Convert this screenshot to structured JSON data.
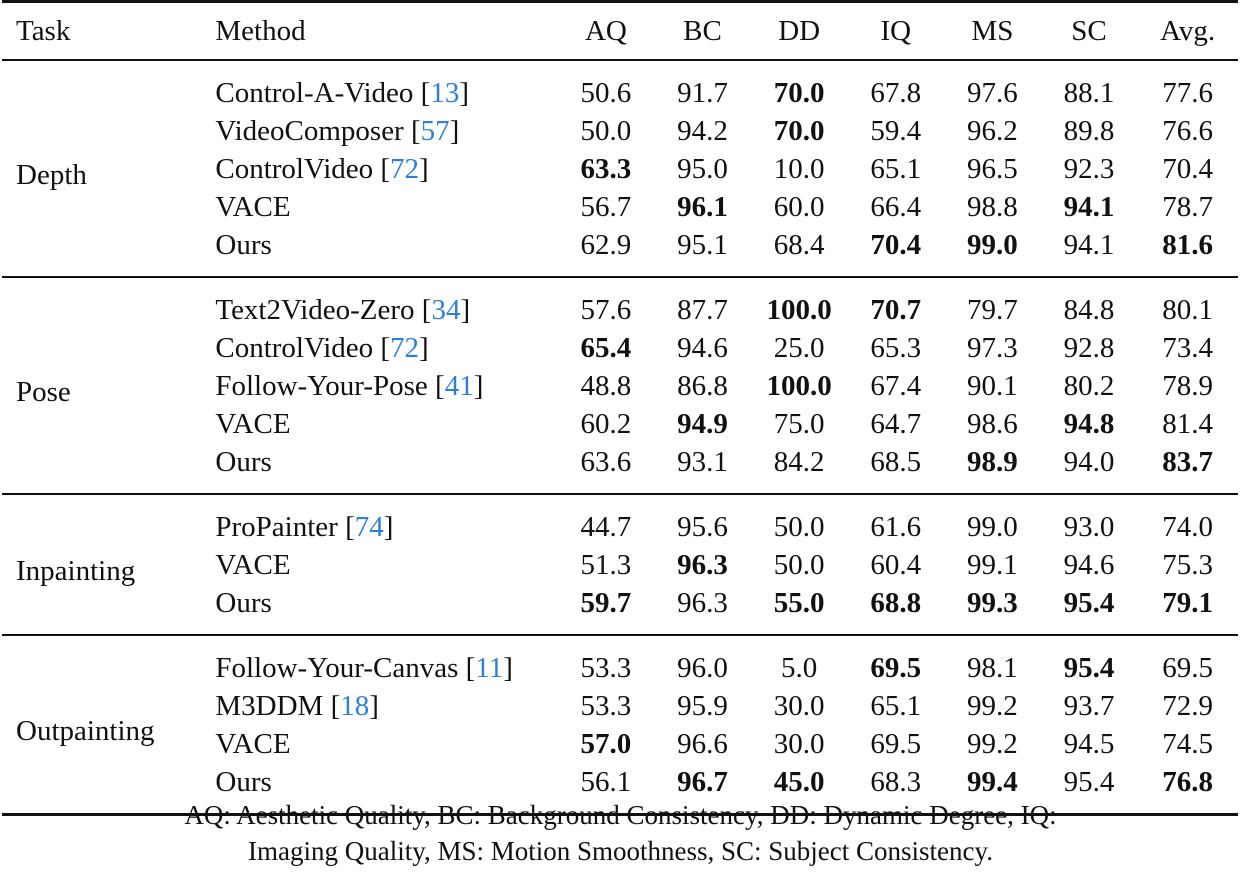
{
  "table": {
    "headers": {
      "task": "Task",
      "method": "Method",
      "metrics": [
        "AQ",
        "BC",
        "DD",
        "IQ",
        "MS",
        "SC",
        "Avg."
      ]
    },
    "groups": [
      {
        "task": "Depth",
        "rows": [
          {
            "method": "Control-A-Video",
            "cite": "13",
            "values": [
              "50.6",
              "91.7",
              "70.0",
              "67.8",
              "97.6",
              "88.1",
              "77.6"
            ],
            "bold": [
              false,
              false,
              true,
              false,
              false,
              false,
              false
            ]
          },
          {
            "method": "VideoComposer",
            "cite": "57",
            "values": [
              "50.0",
              "94.2",
              "70.0",
              "59.4",
              "96.2",
              "89.8",
              "76.6"
            ],
            "bold": [
              false,
              false,
              true,
              false,
              false,
              false,
              false
            ]
          },
          {
            "method": "ControlVideo",
            "cite": "72",
            "values": [
              "63.3",
              "95.0",
              "10.0",
              "65.1",
              "96.5",
              "92.3",
              "70.4"
            ],
            "bold": [
              true,
              false,
              false,
              false,
              false,
              false,
              false
            ]
          },
          {
            "method": "VACE",
            "cite": null,
            "values": [
              "56.7",
              "96.1",
              "60.0",
              "66.4",
              "98.8",
              "94.1",
              "78.7"
            ],
            "bold": [
              false,
              true,
              false,
              false,
              false,
              true,
              false
            ]
          },
          {
            "method": "Ours",
            "cite": null,
            "values": [
              "62.9",
              "95.1",
              "68.4",
              "70.4",
              "99.0",
              "94.1",
              "81.6"
            ],
            "bold": [
              false,
              false,
              false,
              true,
              true,
              false,
              true
            ]
          }
        ]
      },
      {
        "task": "Pose",
        "rows": [
          {
            "method": "Text2Video-Zero",
            "cite": "34",
            "values": [
              "57.6",
              "87.7",
              "100.0",
              "70.7",
              "79.7",
              "84.8",
              "80.1"
            ],
            "bold": [
              false,
              false,
              true,
              true,
              false,
              false,
              false
            ]
          },
          {
            "method": "ControlVideo",
            "cite": "72",
            "values": [
              "65.4",
              "94.6",
              "25.0",
              "65.3",
              "97.3",
              "92.8",
              "73.4"
            ],
            "bold": [
              true,
              false,
              false,
              false,
              false,
              false,
              false
            ]
          },
          {
            "method": "Follow-Your-Pose",
            "cite": "41",
            "values": [
              "48.8",
              "86.8",
              "100.0",
              "67.4",
              "90.1",
              "80.2",
              "78.9"
            ],
            "bold": [
              false,
              false,
              true,
              false,
              false,
              false,
              false
            ]
          },
          {
            "method": "VACE",
            "cite": null,
            "values": [
              "60.2",
              "94.9",
              "75.0",
              "64.7",
              "98.6",
              "94.8",
              "81.4"
            ],
            "bold": [
              false,
              true,
              false,
              false,
              false,
              true,
              false
            ]
          },
          {
            "method": "Ours",
            "cite": null,
            "values": [
              "63.6",
              "93.1",
              "84.2",
              "68.5",
              "98.9",
              "94.0",
              "83.7"
            ],
            "bold": [
              false,
              false,
              false,
              false,
              true,
              false,
              true
            ]
          }
        ]
      },
      {
        "task": "Inpainting",
        "rows": [
          {
            "method": "ProPainter",
            "cite": "74",
            "values": [
              "44.7",
              "95.6",
              "50.0",
              "61.6",
              "99.0",
              "93.0",
              "74.0"
            ],
            "bold": [
              false,
              false,
              false,
              false,
              false,
              false,
              false
            ]
          },
          {
            "method": "VACE",
            "cite": null,
            "values": [
              "51.3",
              "96.3",
              "50.0",
              "60.4",
              "99.1",
              "94.6",
              "75.3"
            ],
            "bold": [
              false,
              true,
              false,
              false,
              false,
              false,
              false
            ]
          },
          {
            "method": "Ours",
            "cite": null,
            "values": [
              "59.7",
              "96.3",
              "55.0",
              "68.8",
              "99.3",
              "95.4",
              "79.1"
            ],
            "bold": [
              true,
              false,
              true,
              true,
              true,
              true,
              true
            ]
          }
        ]
      },
      {
        "task": "Outpainting",
        "rows": [
          {
            "method": "Follow-Your-Canvas",
            "cite": "11",
            "values": [
              "53.3",
              "96.0",
              "5.0",
              "69.5",
              "98.1",
              "95.4",
              "69.5"
            ],
            "bold": [
              false,
              false,
              false,
              true,
              false,
              true,
              false
            ]
          },
          {
            "method": "M3DDM",
            "cite": "18",
            "values": [
              "53.3",
              "95.9",
              "30.0",
              "65.1",
              "99.2",
              "93.7",
              "72.9"
            ],
            "bold": [
              false,
              false,
              false,
              false,
              false,
              false,
              false
            ]
          },
          {
            "method": "VACE",
            "cite": null,
            "values": [
              "57.0",
              "96.6",
              "30.0",
              "69.5",
              "99.2",
              "94.5",
              "74.5"
            ],
            "bold": [
              true,
              false,
              false,
              false,
              false,
              false,
              false
            ]
          },
          {
            "method": "Ours",
            "cite": null,
            "values": [
              "56.1",
              "96.7",
              "45.0",
              "68.3",
              "99.4",
              "95.4",
              "76.8"
            ],
            "bold": [
              false,
              true,
              true,
              false,
              true,
              false,
              true
            ]
          }
        ]
      }
    ]
  },
  "footnote": {
    "line1": "AQ: Aesthetic Quality, BC: Background Consistency, DD: Dynamic Degree, IQ:",
    "line2": "Imaging Quality, MS: Motion Smoothness, SC: Subject Consistency."
  },
  "colors": {
    "citation": "#2f7ed8",
    "text": "#111111",
    "rules": "#111111"
  }
}
